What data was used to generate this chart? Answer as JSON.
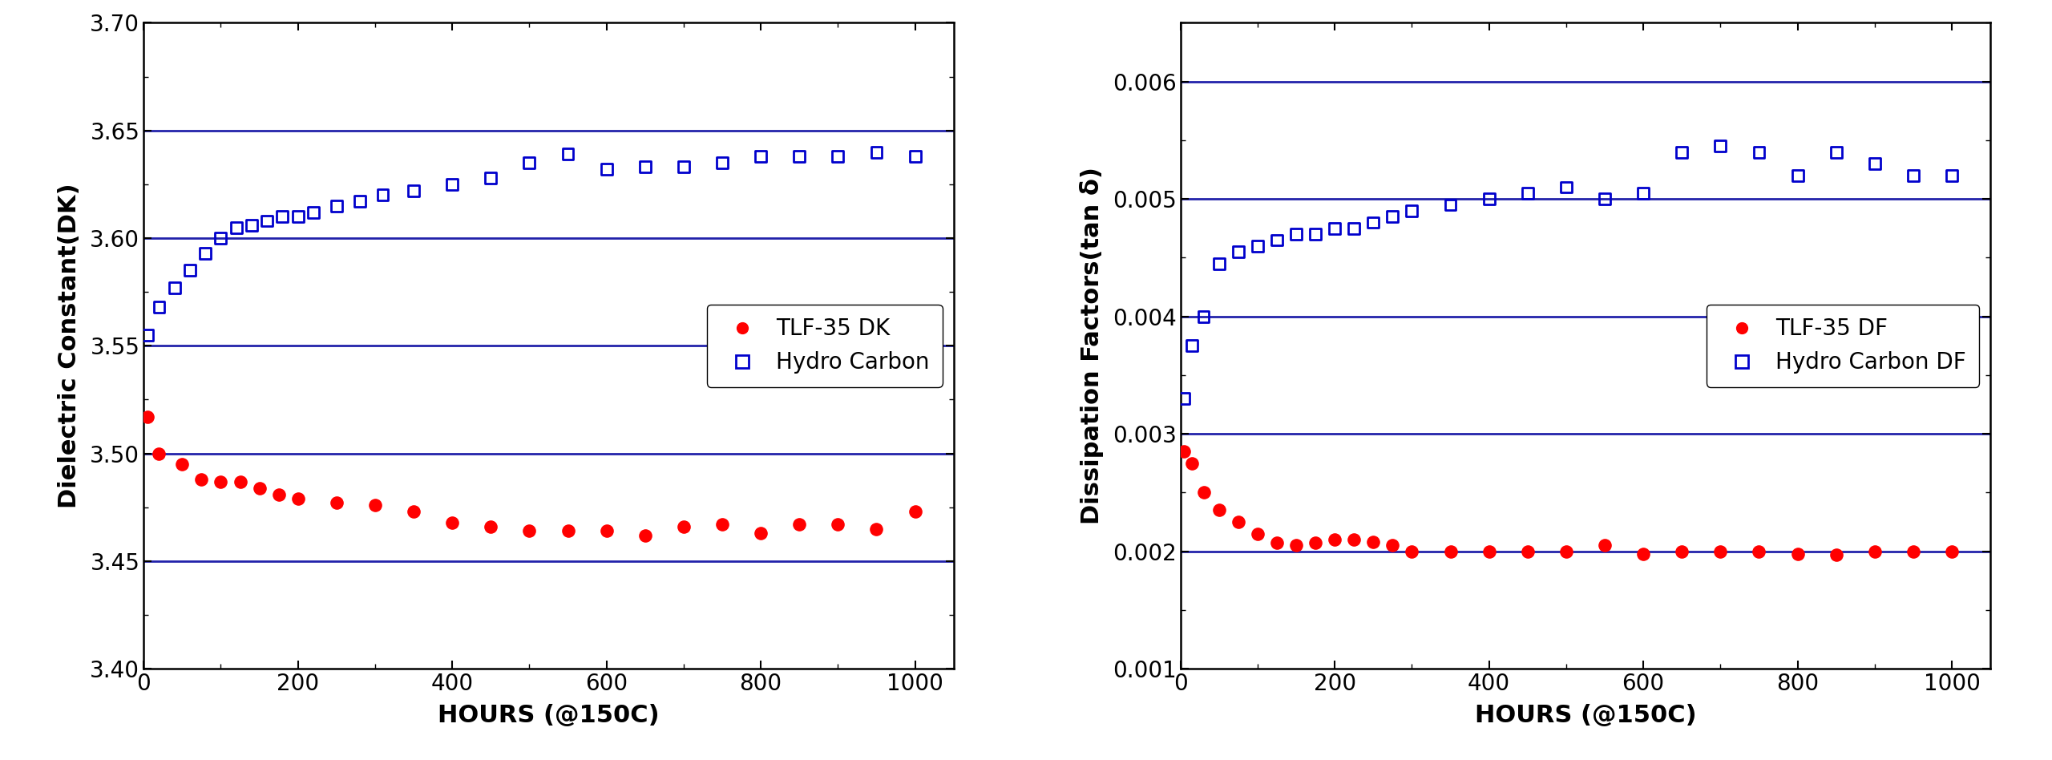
{
  "dk_tlf35_x": [
    5,
    20,
    50,
    75,
    100,
    125,
    150,
    175,
    200,
    250,
    300,
    350,
    400,
    450,
    500,
    550,
    600,
    650,
    700,
    750,
    800,
    850,
    900,
    950,
    1000
  ],
  "dk_tlf35_y": [
    3.517,
    3.5,
    3.495,
    3.488,
    3.487,
    3.487,
    3.484,
    3.481,
    3.479,
    3.477,
    3.476,
    3.473,
    3.468,
    3.466,
    3.464,
    3.464,
    3.464,
    3.462,
    3.466,
    3.467,
    3.463,
    3.467,
    3.467,
    3.465,
    3.473
  ],
  "dk_hc_x": [
    5,
    20,
    40,
    60,
    80,
    100,
    120,
    140,
    160,
    180,
    200,
    220,
    250,
    280,
    310,
    350,
    400,
    450,
    500,
    550,
    600,
    650,
    700,
    750,
    800,
    850,
    900,
    950,
    1000
  ],
  "dk_hc_y": [
    3.555,
    3.568,
    3.577,
    3.585,
    3.593,
    3.6,
    3.605,
    3.606,
    3.608,
    3.61,
    3.61,
    3.612,
    3.615,
    3.617,
    3.62,
    3.622,
    3.625,
    3.628,
    3.635,
    3.639,
    3.632,
    3.633,
    3.633,
    3.635,
    3.638,
    3.638,
    3.638,
    3.64,
    3.638
  ],
  "df_tlf35_x": [
    5,
    15,
    30,
    50,
    75,
    100,
    125,
    150,
    175,
    200,
    225,
    250,
    275,
    300,
    350,
    400,
    450,
    500,
    550,
    600,
    650,
    700,
    750,
    800,
    850,
    900,
    950,
    1000
  ],
  "df_tlf35_y": [
    0.00285,
    0.00275,
    0.0025,
    0.00235,
    0.00225,
    0.00215,
    0.00207,
    0.00205,
    0.00207,
    0.0021,
    0.0021,
    0.00208,
    0.00205,
    0.002,
    0.002,
    0.002,
    0.002,
    0.002,
    0.00205,
    0.00198,
    0.002,
    0.002,
    0.002,
    0.00198,
    0.00197,
    0.002,
    0.002,
    0.002
  ],
  "df_hc_x": [
    5,
    15,
    30,
    50,
    75,
    100,
    125,
    150,
    175,
    200,
    225,
    250,
    275,
    300,
    350,
    400,
    450,
    500,
    550,
    600,
    650,
    700,
    750,
    800,
    850,
    900,
    950,
    1000
  ],
  "df_hc_y": [
    0.0033,
    0.00375,
    0.004,
    0.00445,
    0.00455,
    0.0046,
    0.00465,
    0.0047,
    0.0047,
    0.00475,
    0.00475,
    0.0048,
    0.00485,
    0.0049,
    0.00495,
    0.005,
    0.00505,
    0.0051,
    0.005,
    0.00505,
    0.0054,
    0.00545,
    0.0054,
    0.0052,
    0.0054,
    0.0053,
    0.0052,
    0.0052
  ],
  "dk_ylim": [
    3.4,
    3.7
  ],
  "dk_yticks": [
    3.4,
    3.45,
    3.5,
    3.55,
    3.6,
    3.65,
    3.7
  ],
  "dk_hlines": [
    3.45,
    3.5,
    3.55,
    3.6,
    3.65
  ],
  "df_ylim": [
    0.001,
    0.0065
  ],
  "df_yticks": [
    0.001,
    0.002,
    0.003,
    0.004,
    0.005,
    0.006
  ],
  "df_hlines": [
    0.002,
    0.003,
    0.004,
    0.005,
    0.006
  ],
  "xlim": [
    0,
    1050
  ],
  "xticks": [
    0,
    200,
    400,
    600,
    800,
    1000
  ],
  "xlabel": "HOURS (@150C)",
  "dk_ylabel": "Dielectric Constant(DK)",
  "df_ylabel": "Dissipation Factors(tan δ)",
  "legend1": [
    "TLF-35 DK",
    "Hydro Carbon"
  ],
  "legend2": [
    "TLF-35 DF",
    "Hydro Carbon DF"
  ],
  "red_color": "#ff0000",
  "blue_color": "#0000cc",
  "line_color": "#2222aa",
  "bg_color": "#ffffff",
  "axis_fontsize": 22,
  "tick_fontsize": 20,
  "legend_fontsize": 20,
  "marker_size_circle": 120,
  "marker_size_square": 100,
  "hline_lw": 2.0,
  "spine_lw": 1.8
}
